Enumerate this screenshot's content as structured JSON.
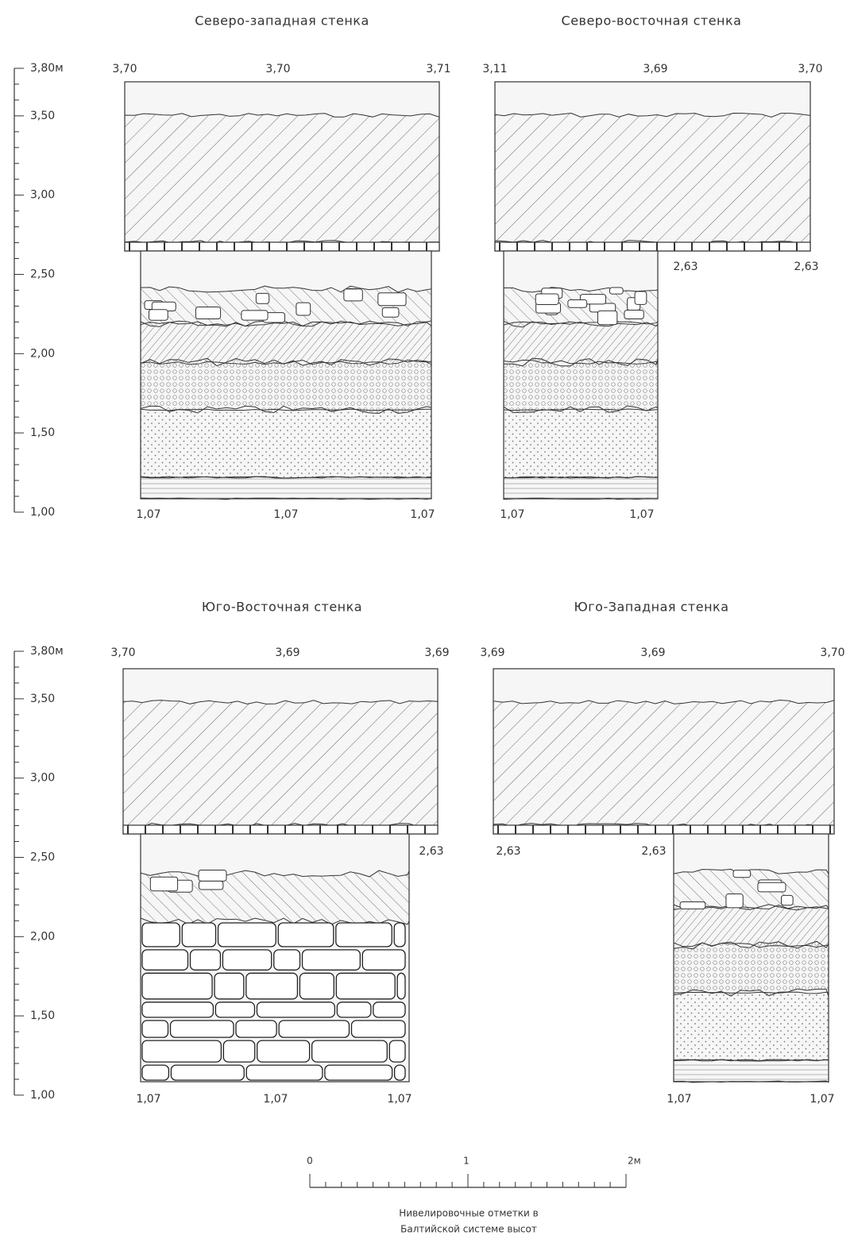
{
  "panels": [
    {
      "title": "Северо-западная стенка",
      "top_labels": [
        "3,70",
        "3,70",
        "3,71"
      ],
      "bottom_labels": [
        "1,07",
        "1,07",
        "1,07"
      ]
    },
    {
      "title": "Северо-восточная стенка",
      "top_labels": [
        "3,11",
        "3,69",
        "3,70"
      ],
      "bottom_labels": [
        "1,07",
        "1,07"
      ],
      "other_labels": [
        "2,63",
        "2,63"
      ]
    },
    {
      "title": "Юго-Восточная стенка",
      "top_labels": [
        "3,70",
        "3,69",
        "3,69"
      ],
      "bottom_labels": [
        "1,07",
        "1,07",
        "1,07"
      ],
      "other_labels": [
        "2,63"
      ]
    },
    {
      "title": "Юго-Западная стенка",
      "top_labels": [
        "3,69",
        "3,69",
        "3,70"
      ],
      "bottom_labels": [
        "1,07",
        "1,07"
      ],
      "other_labels": [
        "2,63",
        "2,63"
      ]
    }
  ],
  "elevation_scales": [
    [
      "3,80м",
      "3,50",
      "3,00",
      "2,50",
      "2,00",
      "1,50",
      "1,00"
    ],
    [
      "3,80м",
      "3,50",
      "3,00",
      "2,50",
      "2,00",
      "1,50",
      "1,00"
    ]
  ],
  "bar_scale": {
    "labels": [
      "0",
      "1",
      "2м"
    ]
  },
  "caption": [
    "Нивелировочные отметки в",
    "Балтийской системе высот"
  ]
}
